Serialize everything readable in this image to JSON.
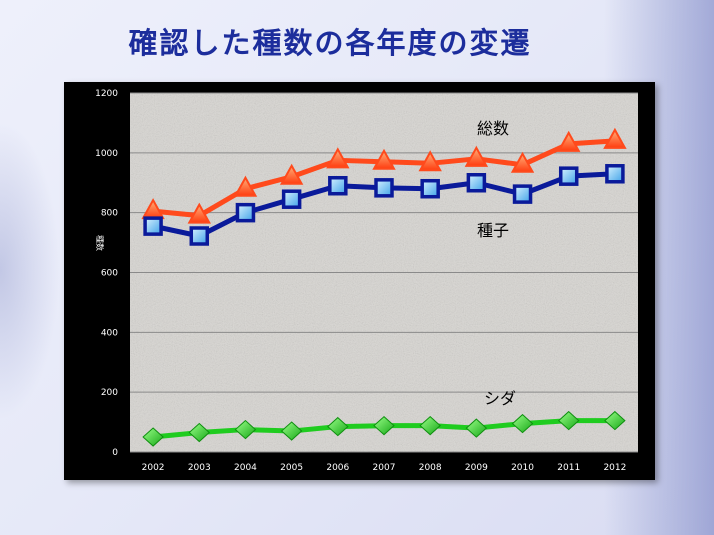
{
  "slide": {
    "title": "確認した種数の各年度の変遷"
  },
  "chart_data": {
    "type": "line",
    "title": "",
    "xlabel": "",
    "ylabel": "種数",
    "ylim": [
      0,
      1200
    ],
    "yticks": [
      0,
      200,
      400,
      600,
      800,
      1000,
      1200
    ],
    "x": [
      "2002",
      "2003",
      "2004",
      "2005",
      "2006",
      "2007",
      "2008",
      "2009",
      "2010",
      "2011",
      "2012"
    ],
    "grid": true,
    "legend": "inline labels",
    "series": [
      {
        "name": "総数",
        "values": [
          805,
          790,
          880,
          920,
          975,
          970,
          965,
          980,
          960,
          1030,
          1040
        ],
        "color": "#ff4a1c",
        "marker": "triangle"
      },
      {
        "name": "種子",
        "values": [
          755,
          722,
          800,
          845,
          890,
          883,
          880,
          900,
          862,
          922,
          930
        ],
        "color": "#0a1a9a",
        "marker": "square"
      },
      {
        "name": "シダ",
        "values": [
          50,
          65,
          75,
          70,
          85,
          88,
          88,
          80,
          95,
          105,
          105
        ],
        "color": "#1fcc1f",
        "marker": "diamond"
      }
    ]
  }
}
